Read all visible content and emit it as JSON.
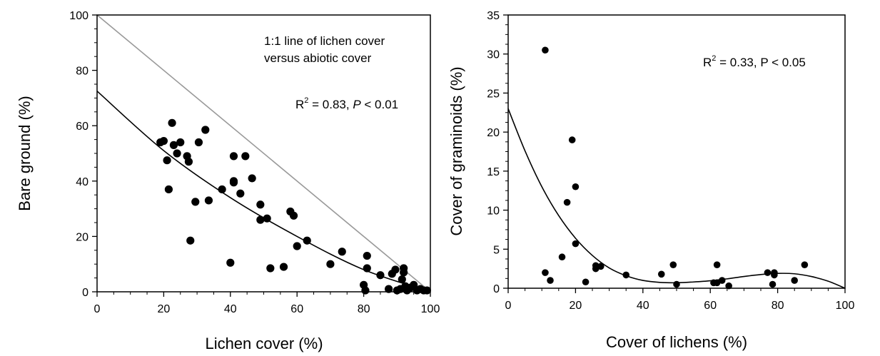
{
  "chart_data": [
    {
      "type": "scatter",
      "xlabel": "Lichen cover (%)",
      "ylabel": "Bare ground (%)",
      "xlim": [
        0,
        100
      ],
      "ylim": [
        0,
        100
      ],
      "x_ticks": [
        "0",
        "20",
        "40",
        "60",
        "80",
        "100"
      ],
      "y_ticks": [
        "0",
        "20",
        "40",
        "60",
        "80",
        "100"
      ],
      "annotations": {
        "line_label_1": "1:1 line of lichen cover",
        "line_label_2": "versus abiotic cover",
        "stat_r": "R",
        "stat_sup": "2",
        "stat_mid": " = 0.83, ",
        "stat_p": "P",
        "stat_end": " < 0.01"
      },
      "reference_line": {
        "name": "1:1 line",
        "x": [
          0,
          100
        ],
        "y": [
          100,
          0
        ],
        "color": "#999999"
      },
      "fit_line": {
        "x": [
          0,
          20,
          40,
          60,
          80,
          100
        ],
        "y": [
          72.5,
          51,
          34,
          20,
          8,
          0
        ]
      },
      "points": [
        [
          19,
          54
        ],
        [
          20,
          54.5
        ],
        [
          21,
          47.5
        ],
        [
          21.5,
          37
        ],
        [
          22.5,
          61
        ],
        [
          23,
          53
        ],
        [
          24,
          50
        ],
        [
          25,
          54
        ],
        [
          27,
          49
        ],
        [
          27.5,
          47
        ],
        [
          28,
          18.5
        ],
        [
          29.5,
          32.5
        ],
        [
          30.5,
          54
        ],
        [
          32.5,
          58.5
        ],
        [
          33.5,
          33
        ],
        [
          37.5,
          37
        ],
        [
          40,
          10.5
        ],
        [
          41,
          49
        ],
        [
          41,
          40
        ],
        [
          41,
          39.5
        ],
        [
          43,
          35.5
        ],
        [
          44.5,
          49
        ],
        [
          46.5,
          41
        ],
        [
          49,
          31.5
        ],
        [
          49,
          26
        ],
        [
          51,
          26.5
        ],
        [
          52,
          8.5
        ],
        [
          56,
          9
        ],
        [
          58,
          29
        ],
        [
          59,
          27.5
        ],
        [
          60,
          16.5
        ],
        [
          63,
          18.5
        ],
        [
          70,
          10
        ],
        [
          73.5,
          14.5
        ],
        [
          81,
          13
        ],
        [
          81,
          8.5
        ],
        [
          85,
          6
        ],
        [
          80,
          2.5
        ],
        [
          80.5,
          0.5
        ],
        [
          87.5,
          1
        ],
        [
          88.5,
          6.5
        ],
        [
          89.5,
          8
        ],
        [
          90,
          0.5
        ],
        [
          91,
          1
        ],
        [
          91.5,
          4.5
        ],
        [
          92,
          8.5
        ],
        [
          92,
          7
        ],
        [
          92.5,
          2
        ],
        [
          93,
          0.5
        ],
        [
          94,
          1.5
        ],
        [
          95,
          2.5
        ],
        [
          96,
          0.5
        ],
        [
          97,
          1
        ],
        [
          98,
          0.5
        ],
        [
          99,
          0.5
        ]
      ]
    },
    {
      "type": "scatter",
      "xlabel": "Cover of lichens (%)",
      "ylabel": "Cover of graminoids (%)",
      "xlim": [
        0,
        100
      ],
      "ylim": [
        0,
        35
      ],
      "x_ticks": [
        "0",
        "20",
        "40",
        "60",
        "80",
        "100"
      ],
      "y_ticks": [
        "0",
        "5",
        "10",
        "15",
        "20",
        "25",
        "30",
        "35"
      ],
      "annotations": {
        "stat_r": "R",
        "stat_sup": "2",
        "stat_end": " = 0.33, P < 0.05"
      },
      "fit_line": {
        "x": [
          0,
          5,
          10,
          15,
          20,
          25,
          30,
          35,
          40,
          45,
          50,
          55,
          60,
          65,
          70,
          75,
          80,
          85,
          90,
          95,
          100
        ],
        "y": [
          23,
          17.6,
          13,
          9.3,
          6.4,
          4.2,
          2.6,
          1.6,
          1.0,
          0.75,
          0.7,
          0.8,
          0.95,
          1.2,
          1.5,
          1.75,
          1.9,
          1.85,
          1.5,
          0.9,
          0
        ]
      },
      "points": [
        [
          11,
          2
        ],
        [
          11,
          30.5
        ],
        [
          12.5,
          1
        ],
        [
          16,
          4
        ],
        [
          17.5,
          11
        ],
        [
          19,
          19
        ],
        [
          20,
          13
        ],
        [
          20,
          5.7
        ],
        [
          23,
          0.8
        ],
        [
          26,
          2.9
        ],
        [
          26,
          2.5
        ],
        [
          27.5,
          2.8
        ],
        [
          35,
          1.7
        ],
        [
          45.5,
          1.8
        ],
        [
          49,
          3
        ],
        [
          50,
          0.5
        ],
        [
          61,
          0.7
        ],
        [
          62,
          0.7
        ],
        [
          62,
          3
        ],
        [
          63.5,
          1
        ],
        [
          65.5,
          0.3
        ],
        [
          77,
          2
        ],
        [
          78.5,
          0.5
        ],
        [
          79,
          2
        ],
        [
          79,
          1.7
        ],
        [
          85,
          1
        ],
        [
          88,
          3
        ]
      ]
    }
  ]
}
